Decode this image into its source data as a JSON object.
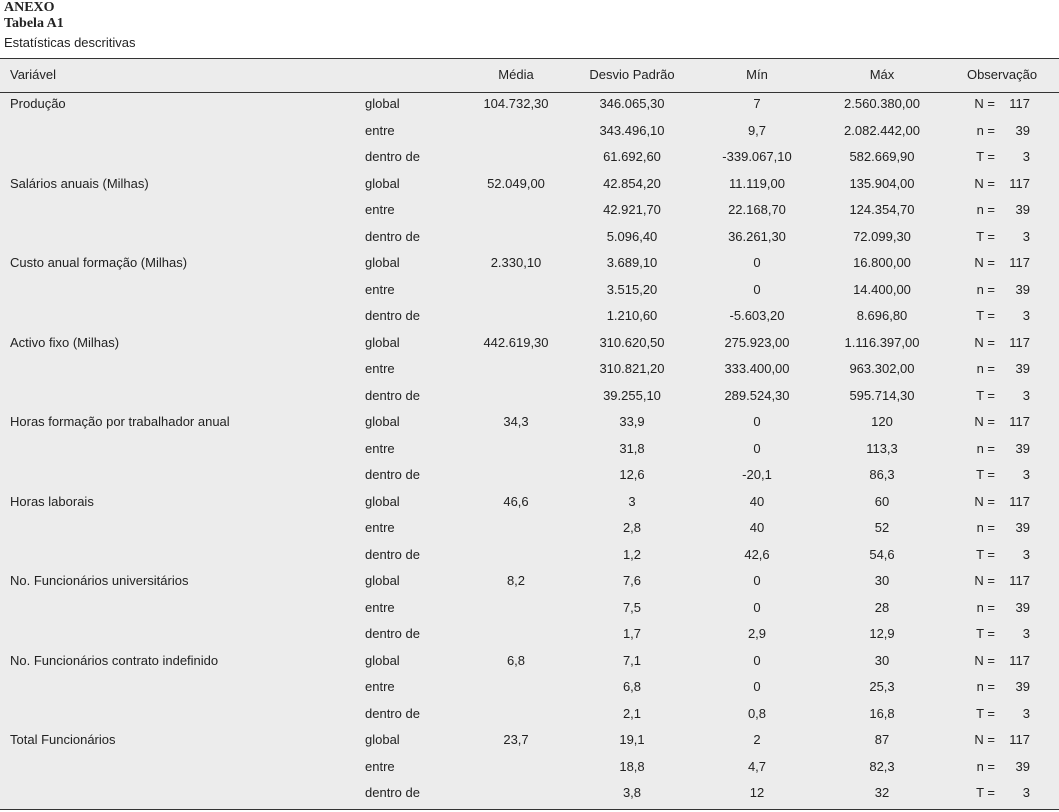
{
  "header": {
    "anexo": "ANEXO",
    "table_label": "Tabela A1",
    "subtitle": "Estatísticas descritivas"
  },
  "table": {
    "columns": [
      "Variável",
      "Média",
      "Desvio Padrão",
      "Mín",
      "Máx",
      "Observação"
    ],
    "rows": [
      [
        "Produção",
        "global",
        "104.732,30",
        "346.065,30",
        "7",
        "2.560.380,00",
        "N =",
        "117"
      ],
      [
        null,
        "entre",
        null,
        "343.496,10",
        "9,7",
        "2.082.442,00",
        "n =",
        "39"
      ],
      [
        null,
        "dentro de",
        null,
        "61.692,60",
        "-339.067,10",
        "582.669,90",
        "T =",
        "3"
      ],
      [
        "Salários anuais (Milhas)",
        "global",
        "52.049,00",
        "42.854,20",
        "11.119,00",
        "135.904,00",
        "N =",
        "117"
      ],
      [
        null,
        "entre",
        null,
        "42.921,70",
        "22.168,70",
        "124.354,70",
        "n =",
        "39"
      ],
      [
        null,
        "dentro de",
        null,
        "5.096,40",
        "36.261,30",
        "72.099,30",
        "T =",
        "3"
      ],
      [
        "Custo anual formação (Milhas)",
        "global",
        "2.330,10",
        "3.689,10",
        "0",
        "16.800,00",
        "N =",
        "117"
      ],
      [
        null,
        "entre",
        null,
        "3.515,20",
        "0",
        "14.400,00",
        "n =",
        "39"
      ],
      [
        null,
        "dentro de",
        null,
        "1.210,60",
        "-5.603,20",
        "8.696,80",
        "T =",
        "3"
      ],
      [
        "Activo fixo (Milhas)",
        "global",
        "442.619,30",
        "310.620,50",
        "275.923,00",
        "1.116.397,00",
        "N =",
        "117"
      ],
      [
        null,
        "entre",
        null,
        "310.821,20",
        "333.400,00",
        "963.302,00",
        "n =",
        "39"
      ],
      [
        null,
        "dentro de",
        null,
        "39.255,10",
        "289.524,30",
        "595.714,30",
        "T =",
        "3"
      ],
      [
        "Horas formação por trabalhador anual",
        "global",
        "34,3",
        "33,9",
        "0",
        "120",
        "N =",
        "117"
      ],
      [
        null,
        "entre",
        null,
        "31,8",
        "0",
        "113,3",
        "n =",
        "39"
      ],
      [
        null,
        "dentro de",
        null,
        "12,6",
        "-20,1",
        "86,3",
        "T =",
        "3"
      ],
      [
        "Horas laborais",
        "global",
        "46,6",
        "3",
        "40",
        "60",
        "N =",
        "117"
      ],
      [
        null,
        "entre",
        null,
        "2,8",
        "40",
        "52",
        "n =",
        "39"
      ],
      [
        null,
        "dentro de",
        null,
        "1,2",
        "42,6",
        "54,6",
        "T =",
        "3"
      ],
      [
        "No. Funcionários universitários",
        "global",
        "8,2",
        "7,6",
        "0",
        "30",
        "N =",
        "117"
      ],
      [
        null,
        "entre",
        null,
        "7,5",
        "0",
        "28",
        "n =",
        "39"
      ],
      [
        null,
        "dentro de",
        null,
        "1,7",
        "2,9",
        "12,9",
        "T =",
        "3"
      ],
      [
        "No. Funcionários contrato indefinido",
        "global",
        "6,8",
        "7,1",
        "0",
        "30",
        "N =",
        "117"
      ],
      [
        null,
        "entre",
        null,
        "6,8",
        "0",
        "25,3",
        "n =",
        "39"
      ],
      [
        null,
        "dentro de",
        null,
        "2,1",
        "0,8",
        "16,8",
        "T =",
        "3"
      ],
      [
        "Total Funcionários",
        "global",
        "23,7",
        "19,1",
        "2",
        "87",
        "N =",
        "117"
      ],
      [
        null,
        "entre",
        null,
        "18,8",
        "4,7",
        "82,3",
        "n =",
        "39"
      ],
      [
        null,
        "dentro de",
        null,
        "3,8",
        "12",
        "32",
        "T =",
        "3"
      ]
    ]
  }
}
